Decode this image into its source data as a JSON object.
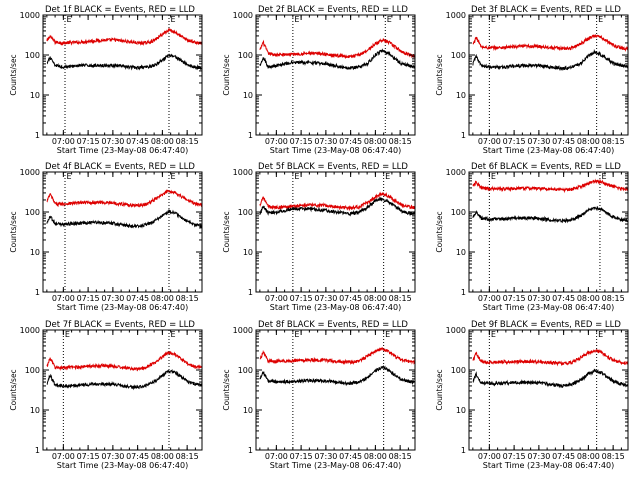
{
  "figure": {
    "xlabel": "Start Time (23-May-08 06:47:40)",
    "ylabel": "Counts/sec",
    "x_ticks": [
      "07:00",
      "07:15",
      "07:30",
      "07:45",
      "08:00",
      "08:15"
    ],
    "y_ticks": [
      "1",
      "10",
      "100",
      "1000"
    ],
    "event_marker_label": "E",
    "colors": {
      "events": "#000000",
      "lld": "#dd0000",
      "axes": "#000000"
    }
  },
  "chart_data": [
    {
      "type": "line",
      "title": "Det 1f BLACK = Events, RED = LLD",
      "y_scale": "log",
      "ylim": [
        1,
        1000
      ],
      "xlim": [
        "06:47:40",
        "08:24"
      ],
      "markers": [
        "07:01",
        "08:04"
      ],
      "x": [
        "06:50",
        "06:52",
        "06:55",
        "07:00",
        "07:10",
        "07:20",
        "07:30",
        "07:40",
        "07:45",
        "07:50",
        "07:55",
        "08:00",
        "08:04",
        "08:08",
        "08:12",
        "08:16",
        "08:20",
        "08:24"
      ],
      "series": [
        {
          "name": "LLD",
          "color": "#dd0000",
          "values": [
            220,
            300,
            210,
            200,
            210,
            230,
            240,
            215,
            200,
            200,
            230,
            330,
            430,
            370,
            280,
            230,
            205,
            195
          ]
        },
        {
          "name": "Events",
          "color": "#000000",
          "values": [
            60,
            85,
            55,
            50,
            55,
            55,
            55,
            50,
            48,
            50,
            55,
            75,
            100,
            90,
            70,
            55,
            50,
            48
          ]
        }
      ]
    },
    {
      "type": "line",
      "title": "Det 2f BLACK = Events, RED = LLD",
      "y_scale": "log",
      "ylim": [
        1,
        1000
      ],
      "xlim": [
        "06:47:40",
        "08:24"
      ],
      "markers": [
        "07:10",
        "08:06"
      ],
      "x": [
        "06:50",
        "06:52",
        "06:55",
        "07:00",
        "07:10",
        "07:20",
        "07:30",
        "07:40",
        "07:45",
        "07:50",
        "07:55",
        "08:00",
        "08:04",
        "08:08",
        "08:12",
        "08:16",
        "08:20",
        "08:24"
      ],
      "series": [
        {
          "name": "LLD",
          "color": "#dd0000",
          "values": [
            130,
            210,
            110,
            100,
            105,
            110,
            105,
            95,
            90,
            100,
            130,
            190,
            240,
            210,
            160,
            120,
            105,
            95
          ]
        },
        {
          "name": "Events",
          "color": "#000000",
          "values": [
            55,
            90,
            50,
            55,
            65,
            65,
            60,
            50,
            48,
            50,
            60,
            100,
            130,
            110,
            80,
            60,
            55,
            50
          ]
        }
      ]
    },
    {
      "type": "line",
      "title": "Det 3f BLACK = Events, RED = LLD",
      "y_scale": "log",
      "ylim": [
        1,
        1000
      ],
      "xlim": [
        "06:47:40",
        "08:24"
      ],
      "markers": [
        "07:00",
        "08:05"
      ],
      "x": [
        "06:50",
        "06:52",
        "06:55",
        "07:00",
        "07:10",
        "07:20",
        "07:30",
        "07:40",
        "07:45",
        "07:50",
        "07:55",
        "08:00",
        "08:04",
        "08:08",
        "08:12",
        "08:16",
        "08:20",
        "08:24"
      ],
      "series": [
        {
          "name": "LLD",
          "color": "#dd0000",
          "values": [
            180,
            280,
            160,
            150,
            155,
            165,
            165,
            150,
            145,
            150,
            190,
            260,
            310,
            270,
            210,
            170,
            150,
            140
          ]
        },
        {
          "name": "Events",
          "color": "#000000",
          "values": [
            60,
            95,
            55,
            50,
            50,
            55,
            55,
            48,
            46,
            50,
            60,
            95,
            120,
            100,
            75,
            60,
            55,
            50
          ]
        }
      ]
    },
    {
      "type": "line",
      "title": "Det 4f BLACK = Events, RED = LLD",
      "y_scale": "log",
      "ylim": [
        1,
        1000
      ],
      "xlim": [
        "06:47:40",
        "08:24"
      ],
      "markers": [
        "07:01",
        "08:04"
      ],
      "x": [
        "06:50",
        "06:52",
        "06:55",
        "07:00",
        "07:10",
        "07:20",
        "07:30",
        "07:40",
        "07:45",
        "07:50",
        "07:55",
        "08:00",
        "08:04",
        "08:08",
        "08:12",
        "08:16",
        "08:20",
        "08:24"
      ],
      "series": [
        {
          "name": "LLD",
          "color": "#dd0000",
          "values": [
            180,
            280,
            160,
            160,
            170,
            175,
            170,
            150,
            145,
            155,
            200,
            270,
            340,
            300,
            240,
            190,
            160,
            150
          ]
        },
        {
          "name": "Events",
          "color": "#000000",
          "values": [
            55,
            80,
            50,
            50,
            52,
            55,
            52,
            45,
            44,
            48,
            58,
            80,
            105,
            95,
            70,
            55,
            48,
            45
          ]
        }
      ]
    },
    {
      "type": "line",
      "title": "Det 5f BLACK = Events, RED = LLD",
      "y_scale": "log",
      "ylim": [
        1,
        1000
      ],
      "xlim": [
        "06:47:40",
        "08:24"
      ],
      "markers": [
        "07:10",
        "08:05"
      ],
      "x": [
        "06:50",
        "06:52",
        "06:55",
        "07:00",
        "07:10",
        "07:20",
        "07:30",
        "07:40",
        "07:45",
        "07:50",
        "07:55",
        "08:00",
        "08:04",
        "08:08",
        "08:12",
        "08:16",
        "08:20",
        "08:24"
      ],
      "series": [
        {
          "name": "LLD",
          "color": "#dd0000",
          "values": [
            150,
            240,
            135,
            130,
            140,
            150,
            145,
            130,
            125,
            135,
            170,
            240,
            290,
            250,
            190,
            150,
            135,
            130
          ]
        },
        {
          "name": "Events",
          "color": "#000000",
          "values": [
            90,
            140,
            95,
            100,
            120,
            120,
            110,
            95,
            90,
            100,
            130,
            190,
            210,
            180,
            140,
            105,
            95,
            90
          ]
        }
      ]
    },
    {
      "type": "line",
      "title": "Det 6f BLACK = Events, RED = LLD",
      "y_scale": "log",
      "ylim": [
        1,
        1000
      ],
      "xlim": [
        "06:47:40",
        "08:24"
      ],
      "markers": [
        "07:00",
        "08:07"
      ],
      "x": [
        "06:50",
        "06:52",
        "06:55",
        "07:00",
        "07:10",
        "07:20",
        "07:30",
        "07:40",
        "07:45",
        "07:50",
        "07:55",
        "08:00",
        "08:04",
        "08:08",
        "08:12",
        "08:16",
        "08:20",
        "08:24"
      ],
      "series": [
        {
          "name": "LLD",
          "color": "#dd0000",
          "values": [
            430,
            560,
            400,
            380,
            380,
            390,
            390,
            370,
            360,
            370,
            420,
            520,
            600,
            560,
            480,
            420,
            390,
            380
          ]
        },
        {
          "name": "Events",
          "color": "#000000",
          "values": [
            75,
            100,
            70,
            65,
            68,
            72,
            70,
            62,
            60,
            64,
            80,
            110,
            130,
            115,
            90,
            72,
            65,
            60
          ]
        }
      ]
    },
    {
      "type": "line",
      "title": "Det 7f BLACK = Events, RED = LLD",
      "y_scale": "log",
      "ylim": [
        1,
        1000
      ],
      "xlim": [
        "06:47:40",
        "08:24"
      ],
      "markers": [
        "07:00",
        "08:04"
      ],
      "x": [
        "06:50",
        "06:52",
        "06:55",
        "07:00",
        "07:10",
        "07:20",
        "07:30",
        "07:40",
        "07:45",
        "07:50",
        "07:55",
        "08:00",
        "08:04",
        "08:08",
        "08:12",
        "08:16",
        "08:20",
        "08:24"
      ],
      "series": [
        {
          "name": "LLD",
          "color": "#dd0000",
          "values": [
            120,
            200,
            115,
            115,
            120,
            130,
            125,
            110,
            105,
            115,
            150,
            220,
            280,
            240,
            180,
            140,
            120,
            115
          ]
        },
        {
          "name": "Events",
          "color": "#000000",
          "values": [
            45,
            75,
            42,
            40,
            42,
            45,
            44,
            38,
            37,
            40,
            50,
            75,
            95,
            85,
            65,
            50,
            45,
            42
          ]
        }
      ]
    },
    {
      "type": "line",
      "title": "Det 8f BLACK = Events, RED = LLD",
      "y_scale": "log",
      "ylim": [
        1,
        1000
      ],
      "xlim": [
        "06:47:40",
        "08:24"
      ],
      "markers": [
        "07:10",
        "08:05"
      ],
      "x": [
        "06:50",
        "06:52",
        "06:55",
        "07:00",
        "07:10",
        "07:20",
        "07:30",
        "07:40",
        "07:45",
        "07:50",
        "07:55",
        "08:00",
        "08:04",
        "08:08",
        "08:12",
        "08:16",
        "08:20",
        "08:24"
      ],
      "series": [
        {
          "name": "LLD",
          "color": "#dd0000",
          "values": [
            180,
            280,
            170,
            165,
            170,
            180,
            175,
            160,
            155,
            170,
            220,
            300,
            340,
            290,
            220,
            180,
            165,
            160
          ]
        },
        {
          "name": "Events",
          "color": "#000000",
          "values": [
            60,
            90,
            55,
            50,
            52,
            55,
            54,
            48,
            46,
            50,
            62,
            95,
            120,
            100,
            75,
            58,
            52,
            50
          ]
        }
      ]
    },
    {
      "type": "line",
      "title": "Det 9f BLACK = Events, RED = LLD",
      "y_scale": "log",
      "ylim": [
        1,
        1000
      ],
      "xlim": [
        "06:47:40",
        "08:24"
      ],
      "markers": [
        "07:00",
        "08:05"
      ],
      "x": [
        "06:50",
        "06:52",
        "06:55",
        "07:00",
        "07:10",
        "07:20",
        "07:30",
        "07:40",
        "07:45",
        "07:50",
        "07:55",
        "08:00",
        "08:04",
        "08:08",
        "08:12",
        "08:16",
        "08:20",
        "08:24"
      ],
      "series": [
        {
          "name": "LLD",
          "color": "#dd0000",
          "values": [
            170,
            260,
            160,
            155,
            160,
            165,
            160,
            150,
            145,
            155,
            200,
            270,
            310,
            270,
            210,
            170,
            155,
            150
          ]
        },
        {
          "name": "Events",
          "color": "#000000",
          "values": [
            50,
            80,
            48,
            45,
            47,
            50,
            48,
            42,
            40,
            44,
            55,
            80,
            95,
            85,
            65,
            50,
            45,
            42
          ]
        }
      ]
    }
  ]
}
